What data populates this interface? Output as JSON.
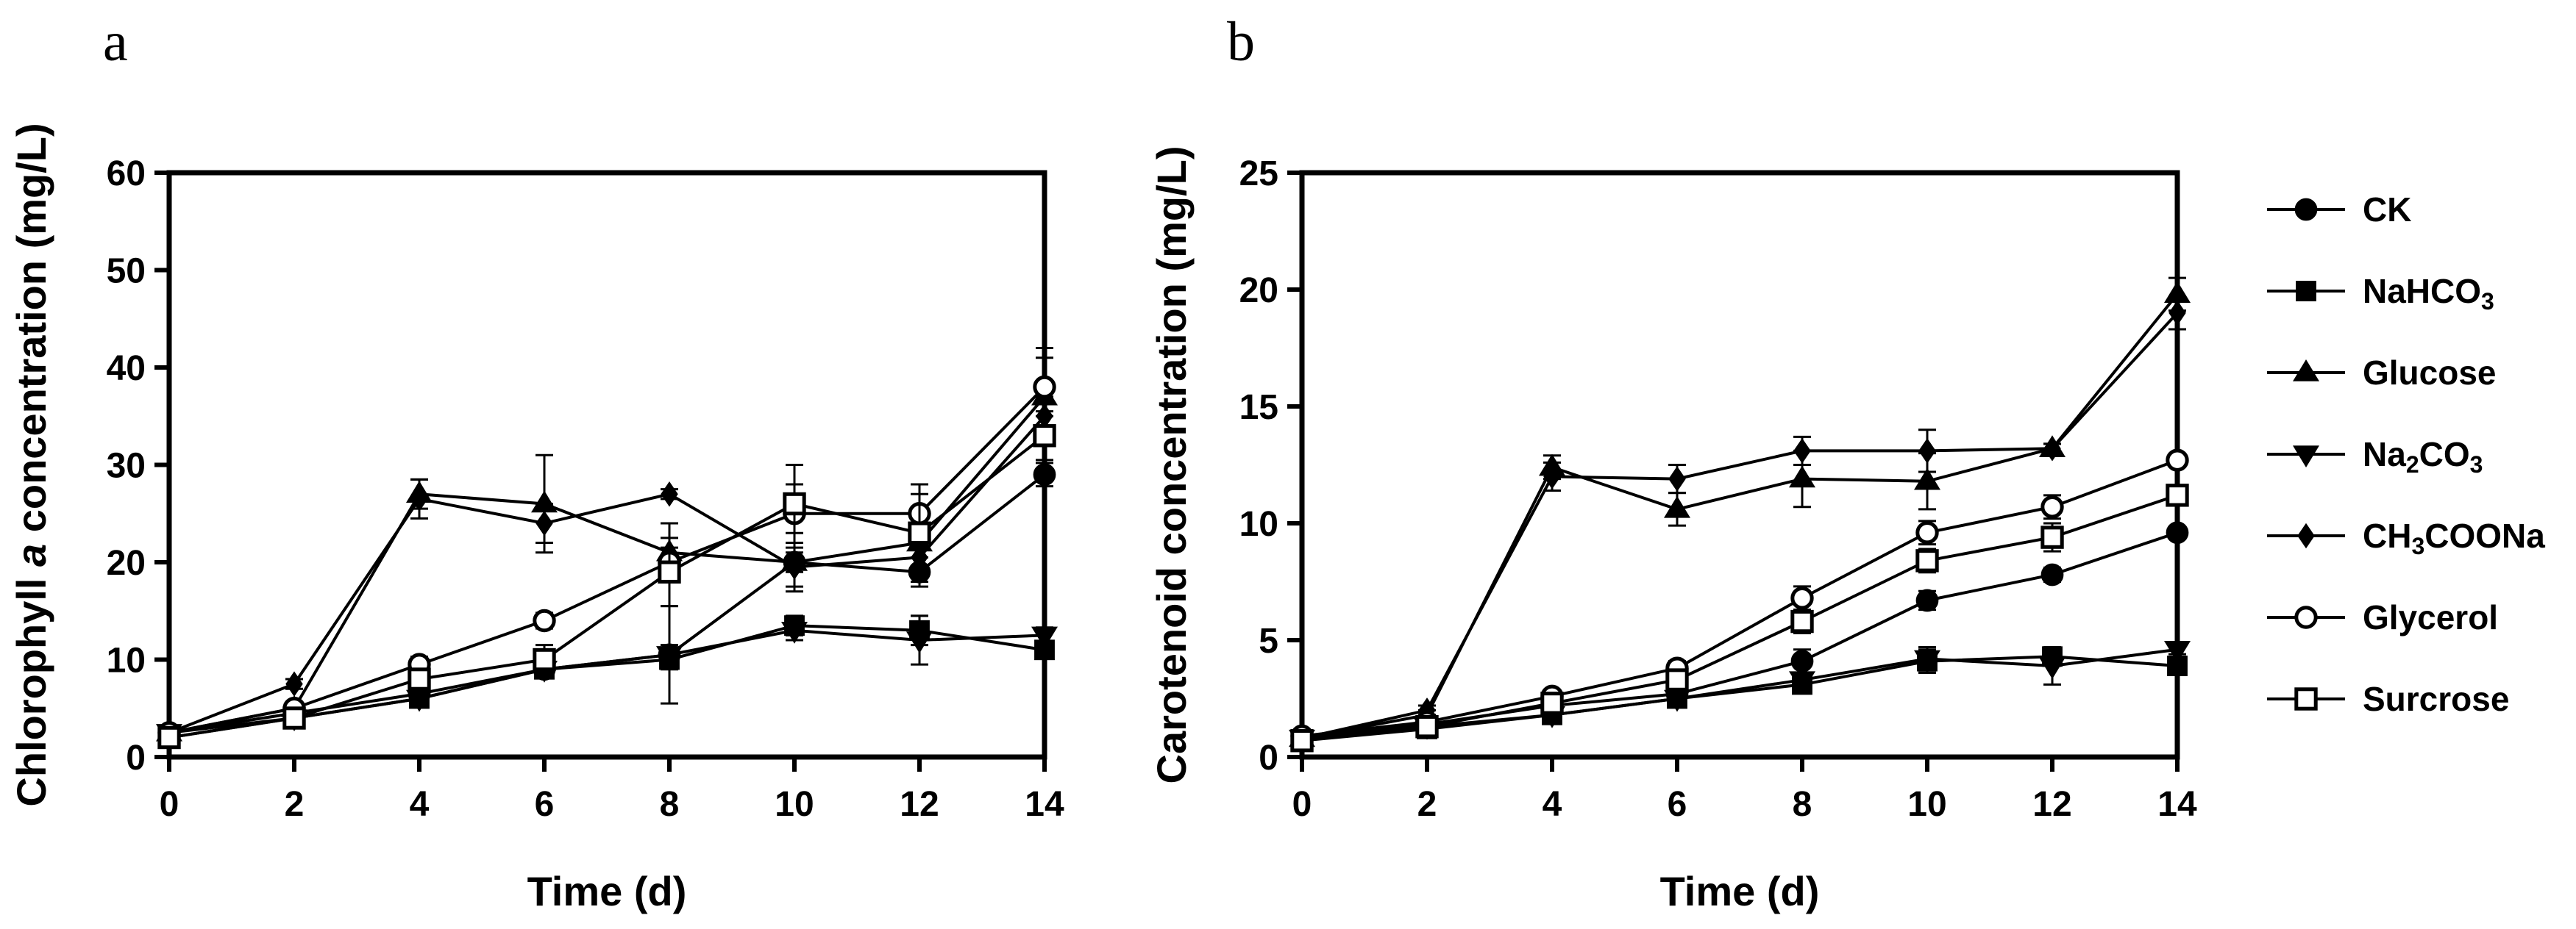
{
  "chart_data": [
    {
      "panel": "a",
      "type": "line",
      "xlabel": "Time (d)",
      "ylabel_parts": [
        "Chlorophyll ",
        "a",
        " concentration (mg/L)"
      ],
      "x": [
        0,
        2,
        4,
        6,
        8,
        10,
        12,
        14
      ],
      "xlim": [
        0,
        14
      ],
      "ylim": [
        0,
        60
      ],
      "xticks": [
        0,
        2,
        4,
        6,
        8,
        10,
        12,
        14
      ],
      "yticks": [
        0,
        10,
        20,
        30,
        40,
        50,
        60
      ],
      "grid": false,
      "series": [
        {
          "name": "CK",
          "values": [
            2.5,
            4.5,
            6.5,
            9,
            10.5,
            20,
            19,
            29
          ],
          "errors": [
            0.3,
            0.5,
            0.5,
            0.8,
            1,
            1,
            1.5,
            1.2
          ]
        },
        {
          "name": "NaHCO3",
          "values": [
            2,
            4,
            6,
            9,
            10,
            13.5,
            13,
            11
          ],
          "errors": [
            0.3,
            0.5,
            0.5,
            0.8,
            1,
            1,
            1.5,
            0.8
          ]
        },
        {
          "name": "Glucose",
          "values": [
            2.5,
            5,
            27,
            26,
            21,
            20,
            22,
            37
          ],
          "errors": [
            0.3,
            0.5,
            1.5,
            5,
            3,
            3,
            3,
            5
          ]
        },
        {
          "name": "Na2CO3",
          "values": [
            2.5,
            4,
            6,
            9,
            10.5,
            13,
            12,
            12.5
          ],
          "errors": [
            0.3,
            0.5,
            0.5,
            0.8,
            5,
            1,
            2.5,
            0.8
          ]
        },
        {
          "name": "CH3COONa",
          "values": [
            2.5,
            7.5,
            26.5,
            24,
            27,
            19.5,
            20.5,
            35
          ],
          "errors": [
            0.3,
            0.5,
            2,
            2,
            0.5,
            2,
            2,
            2
          ]
        },
        {
          "name": "Glycerol",
          "values": [
            2.5,
            5,
            9.5,
            14,
            20,
            25,
            25,
            38
          ],
          "errors": [
            0.3,
            0.5,
            0.8,
            0.8,
            1.5,
            3,
            2,
            3
          ]
        },
        {
          "name": "Surcrose",
          "values": [
            2,
            4,
            8,
            10,
            19,
            26,
            23,
            33
          ],
          "errors": [
            0.3,
            0.5,
            0.8,
            1.5,
            3.5,
            4,
            5,
            2.5
          ]
        }
      ]
    },
    {
      "panel": "b",
      "type": "line",
      "xlabel": "Time (d)",
      "ylabel": "Carotenoid concentration (mg/L)",
      "x": [
        0,
        2,
        4,
        6,
        8,
        10,
        12,
        14
      ],
      "xlim": [
        0,
        14
      ],
      "ylim": [
        0,
        25
      ],
      "xticks": [
        0,
        2,
        4,
        6,
        8,
        10,
        12,
        14
      ],
      "yticks": [
        0,
        5,
        10,
        15,
        20,
        25
      ],
      "grid": false,
      "series": [
        {
          "name": "CK",
          "values": [
            0.8,
            1.4,
            2.2,
            2.7,
            4.1,
            6.7,
            7.8,
            9.6
          ],
          "errors": [
            0.1,
            0.1,
            0.2,
            0.2,
            0.5,
            0.4,
            0.3,
            0.2
          ]
        },
        {
          "name": "NaHCO3",
          "values": [
            0.7,
            1.2,
            1.8,
            2.5,
            3.1,
            4.1,
            4.3,
            3.9
          ],
          "errors": [
            0.1,
            0.1,
            0.2,
            0.2,
            0.2,
            0.5,
            0.4,
            0.2
          ]
        },
        {
          "name": "Glucose",
          "values": [
            0.8,
            1.8,
            12.4,
            10.6,
            11.9,
            11.8,
            13.2,
            19.8
          ],
          "errors": [
            0.1,
            0.2,
            0.5,
            0.7,
            1.2,
            1.2,
            0.2,
            0.7
          ]
        },
        {
          "name": "Na2CO3",
          "values": [
            0.8,
            1.3,
            1.8,
            2.5,
            3.3,
            4.2,
            3.9,
            4.6
          ],
          "errors": [
            0.1,
            0.1,
            0.2,
            0.2,
            0.3,
            0.5,
            0.8,
            0.2
          ]
        },
        {
          "name": "CH3COONa",
          "values": [
            0.8,
            2.0,
            12.0,
            11.9,
            13.1,
            13.1,
            13.2,
            19.0
          ],
          "errors": [
            0.1,
            0.2,
            0.6,
            0.6,
            0.6,
            0.9,
            0.2,
            0.7
          ]
        },
        {
          "name": "Glycerol",
          "values": [
            0.9,
            1.5,
            2.6,
            3.8,
            6.8,
            9.6,
            10.7,
            12.7
          ],
          "errors": [
            0.1,
            0.1,
            0.2,
            0.3,
            0.5,
            0.5,
            0.5,
            0.2
          ]
        },
        {
          "name": "Surcrose",
          "values": [
            0.7,
            1.3,
            2.3,
            3.3,
            5.8,
            8.4,
            9.4,
            11.2
          ],
          "errors": [
            0.1,
            0.1,
            0.2,
            0.3,
            0.5,
            0.5,
            0.6,
            0.2
          ]
        }
      ]
    }
  ],
  "legend": [
    {
      "key": "CK",
      "marker": "circle-filled",
      "label_parts": [
        [
          "CK",
          "n"
        ]
      ]
    },
    {
      "key": "NaHCO3",
      "marker": "square-filled",
      "label_parts": [
        [
          "NaHCO",
          "n"
        ],
        [
          "3",
          "sub"
        ]
      ]
    },
    {
      "key": "Glucose",
      "marker": "triangle-up",
      "label_parts": [
        [
          "Glucose",
          "n"
        ]
      ]
    },
    {
      "key": "Na2CO3",
      "marker": "triangle-down",
      "label_parts": [
        [
          "Na",
          "n"
        ],
        [
          "2",
          "sub"
        ],
        [
          "CO",
          "n"
        ],
        [
          "3",
          "sub"
        ]
      ]
    },
    {
      "key": "CH3COONa",
      "marker": "diamond",
      "label_parts": [
        [
          "CH",
          "n"
        ],
        [
          "3",
          "sub"
        ],
        [
          "COONa",
          "n"
        ]
      ]
    },
    {
      "key": "Glycerol",
      "marker": "circle-open",
      "label_parts": [
        [
          "Glycerol",
          "n"
        ]
      ]
    },
    {
      "key": "Surcrose",
      "marker": "square-open",
      "label_parts": [
        [
          "Surcrose",
          "n"
        ]
      ]
    }
  ]
}
